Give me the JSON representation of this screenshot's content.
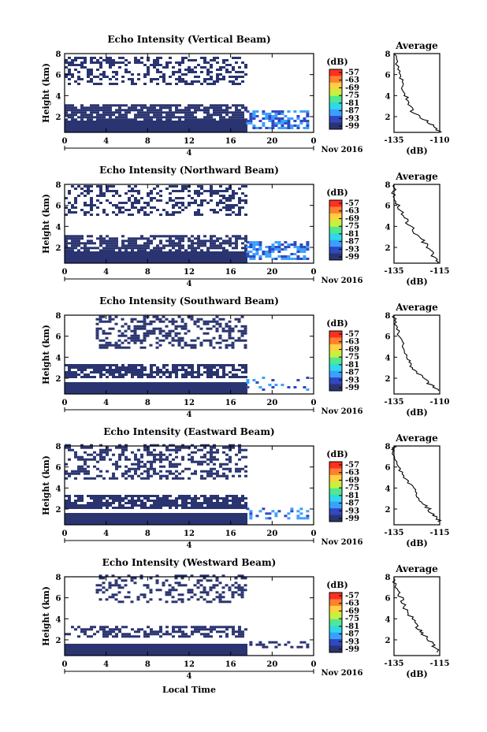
{
  "figure": {
    "xlabel": "Local Time",
    "date_label": "Nov 2016",
    "day_label": "4",
    "colorbar_unit": "(dB)",
    "colorbar_ticks": [
      "-57",
      "-63",
      "-69",
      "-75",
      "-81",
      "-87",
      "-93",
      "-99"
    ],
    "profile_title": "Average",
    "profile_xlabel": "(dB)",
    "height_label": "Height (km)",
    "x_ticks": [
      "0",
      "4",
      "8",
      "12",
      "16",
      "20",
      "0"
    ],
    "y_ticks": [
      "2",
      "4",
      "6",
      "8"
    ]
  },
  "colors": {
    "ramp": [
      "#2a3470",
      "#3048c0",
      "#3aa0ff",
      "#30d8e8",
      "#50e890",
      "#c8f040",
      "#ffd040",
      "#ff8030",
      "#ff3020"
    ]
  },
  "chart_data": [
    {
      "type": "heatmap",
      "title": "Echo Intensity (Vertical Beam)",
      "xlim": [
        0,
        24
      ],
      "ylim": [
        0.5,
        8
      ],
      "clim": [
        -99,
        -57
      ],
      "layers": [
        {
          "x0": 0,
          "x1": 17.5,
          "y0": 0.5,
          "y1": 1.6,
          "density": 1.0,
          "level": 0
        },
        {
          "x0": 0,
          "x1": 17.5,
          "y0": 1.6,
          "y1": 3.1,
          "density": 0.8,
          "level": 0
        },
        {
          "x0": 0,
          "x1": 17.5,
          "y0": 5.0,
          "y1": 7.5,
          "density": 0.4,
          "level": 0
        },
        {
          "x0": 17.5,
          "x1": 23.5,
          "y0": 0.8,
          "y1": 2.5,
          "density": 0.6,
          "level": 1
        }
      ],
      "profile": {
        "xlim": [
          -135,
          -110
        ],
        "xticks": [
          "-135",
          "-110"
        ],
        "points": [
          [
            -110,
            0.5
          ],
          [
            -114,
            1.2
          ],
          [
            -119,
            1.8
          ],
          [
            -125,
            2.5
          ],
          [
            -127,
            3.5
          ],
          [
            -130,
            4.5
          ],
          [
            -131,
            5.5
          ],
          [
            -133,
            6.5
          ],
          [
            -135,
            8
          ]
        ]
      }
    },
    {
      "type": "heatmap",
      "title": "Echo Intensity (Northward Beam)",
      "xlim": [
        0,
        24
      ],
      "ylim": [
        0.5,
        8
      ],
      "clim": [
        -99,
        -57
      ],
      "layers": [
        {
          "x0": 0,
          "x1": 17.5,
          "y0": 0.5,
          "y1": 1.6,
          "density": 1.0,
          "level": 0
        },
        {
          "x0": 0,
          "x1": 17.5,
          "y0": 1.6,
          "y1": 3.1,
          "density": 0.7,
          "level": 0
        },
        {
          "x0": 0,
          "x1": 17.5,
          "y0": 5.0,
          "y1": 7.8,
          "density": 0.4,
          "level": 0
        },
        {
          "x0": 17.5,
          "x1": 23.5,
          "y0": 0.8,
          "y1": 2.5,
          "density": 0.6,
          "level": 1
        }
      ],
      "profile": {
        "xlim": [
          -135,
          -115
        ],
        "xticks": [
          "-135",
          "-115"
        ],
        "points": [
          [
            -115,
            0.5
          ],
          [
            -118,
            1.2
          ],
          [
            -120,
            2.0
          ],
          [
            -124,
            3.0
          ],
          [
            -128,
            4.0
          ],
          [
            -131,
            5.0
          ],
          [
            -133,
            6.0
          ],
          [
            -135,
            7.0
          ],
          [
            -135,
            8
          ]
        ]
      }
    },
    {
      "type": "heatmap",
      "title": "Echo Intensity (Southward Beam)",
      "xlim": [
        0,
        24
      ],
      "ylim": [
        0.5,
        8
      ],
      "clim": [
        -99,
        -57
      ],
      "layers": [
        {
          "x0": 0,
          "x1": 17.5,
          "y0": 0.5,
          "y1": 1.5,
          "density": 1.0,
          "level": 0
        },
        {
          "x0": 0,
          "x1": 17.5,
          "y0": 2.0,
          "y1": 3.2,
          "density": 0.7,
          "level": 0
        },
        {
          "x0": 3,
          "x1": 17.5,
          "y0": 4.8,
          "y1": 7.8,
          "density": 0.4,
          "level": 0
        },
        {
          "x0": 17.5,
          "x1": 23.5,
          "y0": 0.8,
          "y1": 2.0,
          "density": 0.15,
          "level": 1
        }
      ],
      "profile": {
        "xlim": [
          -135,
          -110
        ],
        "xticks": [
          "-135",
          "-110"
        ],
        "points": [
          [
            -110,
            0.8
          ],
          [
            -116,
            1.5
          ],
          [
            -120,
            2.2
          ],
          [
            -125,
            3.0
          ],
          [
            -127,
            3.8
          ],
          [
            -130,
            5.0
          ],
          [
            -132,
            6.0
          ],
          [
            -134,
            7.0
          ],
          [
            -135,
            8
          ]
        ]
      }
    },
    {
      "type": "heatmap",
      "title": "Echo Intensity (Eastward Beam)",
      "xlim": [
        0,
        24
      ],
      "ylim": [
        0.5,
        8
      ],
      "clim": [
        -99,
        -57
      ],
      "layers": [
        {
          "x0": 0,
          "x1": 17.5,
          "y0": 0.5,
          "y1": 1.5,
          "density": 1.0,
          "level": 0
        },
        {
          "x0": 0,
          "x1": 17.5,
          "y0": 2.0,
          "y1": 3.3,
          "density": 0.8,
          "level": 0
        },
        {
          "x0": 0,
          "x1": 17.5,
          "y0": 4.8,
          "y1": 8.0,
          "density": 0.4,
          "level": 0
        },
        {
          "x0": 17.5,
          "x1": 23.5,
          "y0": 1.0,
          "y1": 2.0,
          "density": 0.25,
          "level": 1
        }
      ],
      "profile": {
        "xlim": [
          -135,
          -115
        ],
        "xticks": [
          "-135",
          "-115"
        ],
        "points": [
          [
            -115,
            0.8
          ],
          [
            -118,
            1.5
          ],
          [
            -121,
            2.3
          ],
          [
            -124,
            3.0
          ],
          [
            -127,
            4.0
          ],
          [
            -130,
            5.0
          ],
          [
            -133,
            6.0
          ],
          [
            -135,
            7.5
          ],
          [
            -135,
            8
          ]
        ]
      }
    },
    {
      "type": "heatmap",
      "title": "Echo Intensity (Westward Beam)",
      "xlim": [
        0,
        24
      ],
      "ylim": [
        0.5,
        8
      ],
      "clim": [
        -99,
        -57
      ],
      "layers": [
        {
          "x0": 0,
          "x1": 17.5,
          "y0": 0.5,
          "y1": 1.5,
          "density": 1.0,
          "level": 0
        },
        {
          "x0": 0,
          "x1": 17.5,
          "y0": 2.2,
          "y1": 3.3,
          "density": 0.5,
          "level": 0
        },
        {
          "x0": 3,
          "x1": 17.5,
          "y0": 5.5,
          "y1": 8.0,
          "density": 0.35,
          "level": 0
        },
        {
          "x0": 17.5,
          "x1": 23.5,
          "y0": 1.2,
          "y1": 1.8,
          "density": 0.3,
          "level": 0
        }
      ],
      "profile": {
        "xlim": [
          -135,
          -115
        ],
        "xticks": [
          "-135",
          "-115"
        ],
        "points": [
          [
            -115,
            0.8
          ],
          [
            -118,
            1.5
          ],
          [
            -121,
            2.3
          ],
          [
            -124,
            3.0
          ],
          [
            -127,
            4.0
          ],
          [
            -130,
            5.0
          ],
          [
            -132,
            6.0
          ],
          [
            -134,
            7.0
          ],
          [
            -135,
            8
          ]
        ]
      }
    }
  ]
}
